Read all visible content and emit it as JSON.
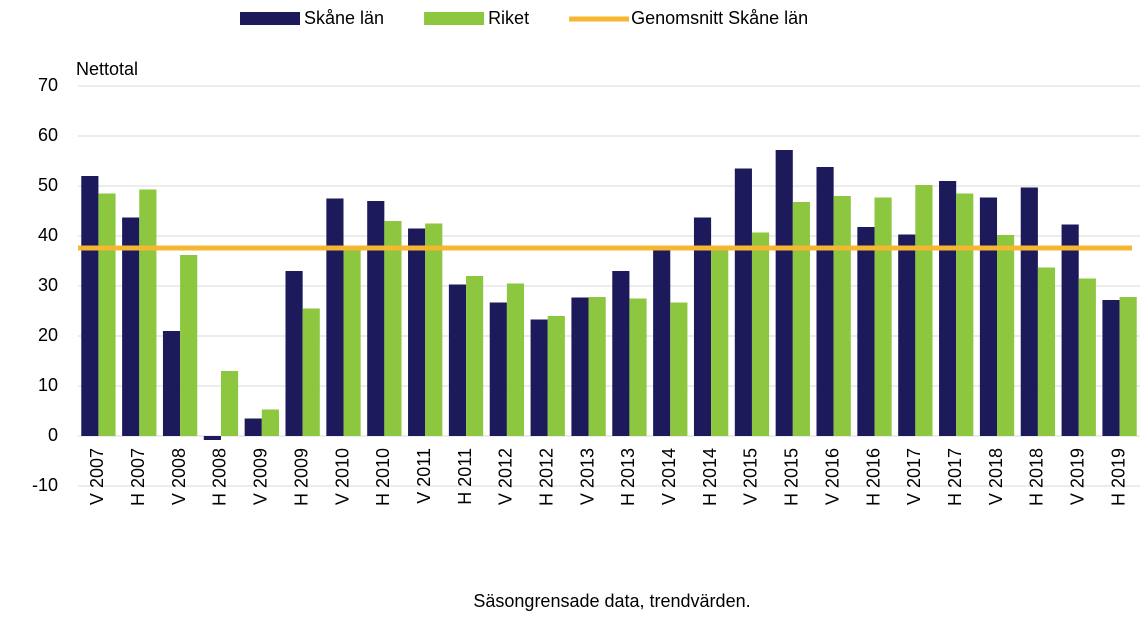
{
  "chart_data": {
    "type": "bar",
    "y_axis_label": "Nettotal",
    "x_axis_label": "Säsongrensade data, trendvärden.",
    "categories": [
      "V 2007",
      "H 2007",
      "V 2008",
      "H 2008",
      "V 2009",
      "H 2009",
      "V 2010",
      "H 2010",
      "V 2011",
      "H 2011",
      "V 2012",
      "H 2012",
      "V 2013",
      "H 2013",
      "V 2014",
      "H 2014",
      "V 2015",
      "H 2015",
      "V 2016",
      "H 2016",
      "V 2017",
      "H 2017",
      "V 2018",
      "H 2018",
      "V 2019",
      "H 2019"
    ],
    "series": [
      {
        "name": "Skåne län",
        "color": "#1c1a5a",
        "values": [
          52,
          43.7,
          21,
          -0.8,
          3.5,
          33,
          47.5,
          47,
          41.5,
          30.3,
          26.7,
          23.3,
          27.7,
          33,
          37.5,
          43.7,
          53.5,
          57.2,
          53.8,
          41.8,
          40.3,
          51,
          47.7,
          49.7,
          42.3,
          27.2
        ]
      },
      {
        "name": "Riket",
        "color": "#8dc63f",
        "values": [
          48.5,
          49.3,
          36.2,
          13,
          5.3,
          25.5,
          37.5,
          43,
          42.5,
          32,
          30.5,
          24,
          27.8,
          27.5,
          26.7,
          37.5,
          40.7,
          46.8,
          48,
          47.7,
          50.2,
          48.5,
          40.2,
          33.7,
          31.5,
          27.8
        ]
      }
    ],
    "reference_line": {
      "name": "Genomsnitt Skåne län",
      "color": "#f5b731",
      "value": 37.6
    },
    "ylim": [
      -10,
      70
    ],
    "yticks": [
      -10,
      0,
      10,
      20,
      30,
      40,
      50,
      60,
      70
    ],
    "grid": true
  }
}
